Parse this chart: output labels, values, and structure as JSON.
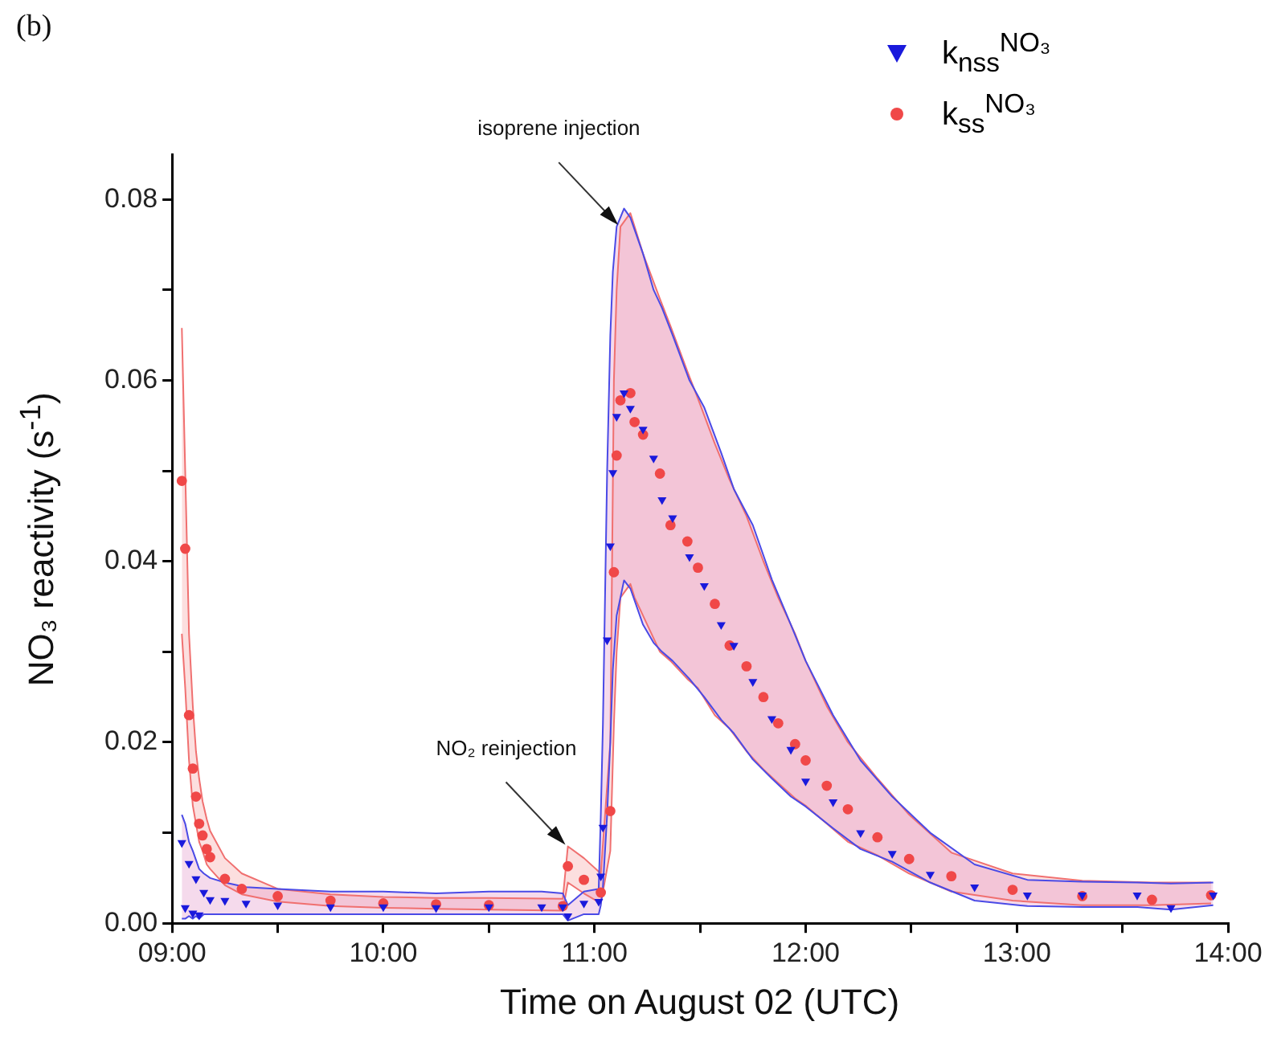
{
  "chart_data": {
    "type": "scatter",
    "xlabel": "Time on August 02 (UTC)",
    "ylabel": "NO₃ reactivity (s$^{-1}$)",
    "xlim": [
      9,
      14
    ],
    "ylim": [
      0,
      0.085
    ],
    "xticks": [
      {
        "value": 9,
        "label": "09:00"
      },
      {
        "value": 9.5,
        "label": null
      },
      {
        "value": 10,
        "label": "10:00"
      },
      {
        "value": 10.5,
        "label": null
      },
      {
        "value": 11,
        "label": "11:00"
      },
      {
        "value": 11.5,
        "label": null
      },
      {
        "value": 12,
        "label": "12:00"
      },
      {
        "value": 12.5,
        "label": null
      },
      {
        "value": 13,
        "label": "13:00"
      },
      {
        "value": 13.5,
        "label": null
      },
      {
        "value": 14,
        "label": "14:00"
      }
    ],
    "yticks": [
      {
        "value": 0,
        "label": "0.00"
      },
      {
        "value": 0.01,
        "label": null
      },
      {
        "value": 0.02,
        "label": "0.02"
      },
      {
        "value": 0.03,
        "label": null
      },
      {
        "value": 0.04,
        "label": "0.04"
      },
      {
        "value": 0.05,
        "label": null
      },
      {
        "value": 0.06,
        "label": "0.06"
      },
      {
        "value": 0.07,
        "label": null
      },
      {
        "value": 0.08,
        "label": "0.08"
      }
    ],
    "grid": false,
    "legend": "top right",
    "annotations": [
      "(b)",
      {
        "text": "isoprene injection",
        "x": 11.12,
        "y": 0.077
      },
      {
        "text": "NO₂ reinjection",
        "x": 10.87,
        "y": 0.0085
      }
    ],
    "series": [
      {
        "name": "k$_{nss}$$^{NO₃}$",
        "color": "#1a1adc",
        "marker": "triangle",
        "x": [
          9.046,
          9.062,
          9.08,
          9.098,
          9.113,
          9.128,
          9.15,
          9.18,
          9.25,
          9.35,
          9.5,
          9.75,
          10.0,
          10.25,
          10.5,
          10.75,
          10.85,
          10.874,
          10.95,
          11.02,
          11.03,
          11.04,
          11.06,
          11.075,
          11.087,
          11.105,
          11.14,
          11.17,
          11.23,
          11.28,
          11.32,
          11.37,
          11.45,
          11.52,
          11.6,
          11.66,
          11.75,
          11.84,
          11.93,
          12.0,
          12.13,
          12.26,
          12.41,
          12.59,
          12.8,
          13.05,
          13.31,
          13.57,
          13.73,
          13.93
        ],
        "values": [
          0.0089,
          0.0017,
          0.0066,
          0.0011,
          0.0049,
          0.0009,
          0.0034,
          0.0026,
          0.0025,
          0.0022,
          0.002,
          0.0018,
          0.0018,
          0.0017,
          0.0018,
          0.0018,
          0.0018,
          0.0008,
          0.0022,
          0.0024,
          0.0052,
          0.0106,
          0.0313,
          0.0417,
          0.0498,
          0.056,
          0.0586,
          0.0569,
          0.0546,
          0.0514,
          0.0468,
          0.0448,
          0.0405,
          0.0373,
          0.033,
          0.0307,
          0.0267,
          0.0226,
          0.0192,
          0.0157,
          0.0134,
          0.01,
          0.0077,
          0.0054,
          0.004,
          0.0031,
          0.0031,
          0.0031,
          0.0017,
          0.0031
        ],
        "lower": [
          0.0005,
          0.0005,
          0.0008,
          0.0005,
          0.0008,
          0.0005,
          0.001,
          0.001,
          0.001,
          0.001,
          0.001,
          0.001,
          0.001,
          0.001,
          0.001,
          0.001,
          0.001,
          0.0003,
          0.001,
          0.001,
          0.002,
          0.004,
          0.012,
          0.02,
          0.028,
          0.034,
          0.0379,
          0.037,
          0.033,
          0.031,
          0.03,
          0.029,
          0.027,
          0.025,
          0.0225,
          0.021,
          0.0181,
          0.016,
          0.014,
          0.0129,
          0.0105,
          0.0082,
          0.0068,
          0.0045,
          0.0025,
          0.0019,
          0.0018,
          0.0018,
          0.0015,
          0.002
        ],
        "upper": [
          0.012,
          0.011,
          0.009,
          0.008,
          0.007,
          0.006,
          0.0055,
          0.005,
          0.0045,
          0.004,
          0.0038,
          0.0035,
          0.0035,
          0.0033,
          0.0035,
          0.0035,
          0.0033,
          0.002,
          0.0035,
          0.0038,
          0.012,
          0.022,
          0.05,
          0.065,
          0.072,
          0.077,
          0.079,
          0.078,
          0.074,
          0.07,
          0.068,
          0.065,
          0.06,
          0.057,
          0.052,
          0.048,
          0.044,
          0.038,
          0.033,
          0.029,
          0.023,
          0.018,
          0.014,
          0.01,
          0.0065,
          0.0048,
          0.0046,
          0.0045,
          0.0044,
          0.0045
        ]
      },
      {
        "name": "k$_{ss}$$^{NO₃}$",
        "color": "#f04848",
        "marker": "circle",
        "x": [
          9.046,
          9.062,
          9.08,
          9.098,
          9.113,
          9.128,
          9.144,
          9.164,
          9.18,
          9.25,
          9.33,
          9.5,
          9.75,
          10.0,
          10.25,
          10.5,
          10.85,
          10.874,
          10.95,
          11.03,
          11.075,
          11.092,
          11.105,
          11.123,
          11.17,
          11.19,
          11.23,
          11.31,
          11.36,
          11.44,
          11.49,
          11.57,
          11.64,
          11.72,
          11.8,
          11.87,
          11.95,
          12.0,
          12.1,
          12.2,
          12.34,
          12.49,
          12.69,
          12.98,
          13.31,
          13.64,
          13.92
        ],
        "values": [
          0.0489,
          0.0414,
          0.023,
          0.0171,
          0.014,
          0.011,
          0.0097,
          0.0082,
          0.0073,
          0.0049,
          0.0038,
          0.003,
          0.0025,
          0.0022,
          0.0021,
          0.002,
          0.0019,
          0.0063,
          0.0048,
          0.0034,
          0.0124,
          0.0388,
          0.0517,
          0.0578,
          0.0586,
          0.0554,
          0.054,
          0.0497,
          0.044,
          0.0422,
          0.0393,
          0.0353,
          0.0307,
          0.0284,
          0.025,
          0.0221,
          0.0198,
          0.018,
          0.0152,
          0.0126,
          0.0095,
          0.0071,
          0.0052,
          0.0037,
          0.003,
          0.0026,
          0.0031
        ],
        "lower": [
          0.032,
          0.026,
          0.018,
          0.013,
          0.011,
          0.009,
          0.008,
          0.0065,
          0.006,
          0.0042,
          0.0032,
          0.0024,
          0.0019,
          0.0017,
          0.0016,
          0.0015,
          0.0014,
          0.0045,
          0.0033,
          0.0022,
          0.008,
          0.022,
          0.03,
          0.036,
          0.0375,
          0.036,
          0.034,
          0.03,
          0.029,
          0.027,
          0.026,
          0.023,
          0.0215,
          0.019,
          0.017,
          0.0155,
          0.0138,
          0.013,
          0.011,
          0.009,
          0.0075,
          0.0055,
          0.0035,
          0.0025,
          0.002,
          0.002,
          0.0022
        ],
        "upper": [
          0.0658,
          0.05,
          0.032,
          0.024,
          0.019,
          0.016,
          0.0135,
          0.0115,
          0.0102,
          0.0072,
          0.0055,
          0.0038,
          0.0032,
          0.0029,
          0.0028,
          0.0028,
          0.0027,
          0.0085,
          0.0072,
          0.0055,
          0.02,
          0.06,
          0.07,
          0.077,
          0.0785,
          0.077,
          0.074,
          0.069,
          0.066,
          0.061,
          0.058,
          0.053,
          0.049,
          0.045,
          0.04,
          0.036,
          0.032,
          0.029,
          0.024,
          0.02,
          0.016,
          0.012,
          0.0078,
          0.0055,
          0.0047,
          0.0045,
          0.0045
        ]
      },
      {
        "type": "line",
        "color": "#4a4ae6",
        "x": [
          9.046,
          9.062,
          9.08,
          9.098,
          9.113,
          9.128,
          9.15,
          9.18,
          9.25,
          9.35,
          9.5,
          9.75,
          10.0,
          10.25,
          10.5,
          10.75,
          10.85,
          10.874,
          10.95,
          11.02,
          11.03,
          11.04,
          11.06,
          11.075,
          11.087,
          11.105,
          11.14,
          11.17,
          11.23,
          11.28,
          11.32,
          11.37,
          11.45,
          11.52,
          11.6,
          11.66,
          11.75,
          11.84,
          11.93,
          12.0,
          12.13,
          12.26,
          12.41,
          12.59,
          12.8,
          13.05,
          13.31,
          13.57,
          13.73,
          13.93
        ],
        "values": [
          0.0005,
          0.0005,
          0.0008,
          0.0005,
          0.0008,
          0.0005,
          0.001,
          0.001,
          0.001,
          0.001,
          0.001,
          0.001,
          0.001,
          0.001,
          0.001,
          0.001,
          0.001,
          0.0003,
          0.001,
          0.001,
          0.002,
          0.004,
          0.012,
          0.02,
          0.028,
          0.034,
          0.0379,
          0.037,
          0.033,
          0.031,
          0.03,
          0.029,
          0.027,
          0.025,
          0.0225,
          0.021,
          0.0181,
          0.016,
          0.014,
          0.0129,
          0.0105,
          0.0082,
          0.0068,
          0.0045,
          0.0025,
          0.0019,
          0.0018,
          0.0018,
          0.0015,
          0.002
        ]
      },
      {
        "type": "line",
        "color": "#4a4ae6",
        "x": [
          9.046,
          9.062,
          9.08,
          9.098,
          9.113,
          9.128,
          9.15,
          9.18,
          9.25,
          9.35,
          9.5,
          9.75,
          10.0,
          10.25,
          10.5,
          10.75,
          10.85,
          10.874,
          10.95,
          11.02,
          11.03,
          11.04,
          11.06,
          11.075,
          11.087,
          11.105,
          11.14,
          11.17,
          11.23,
          11.28,
          11.32,
          11.37,
          11.45,
          11.52,
          11.6,
          11.66,
          11.75,
          11.84,
          11.93,
          12.0,
          12.13,
          12.26,
          12.41,
          12.59,
          12.8,
          13.05,
          13.31,
          13.57,
          13.73,
          13.93
        ],
        "values": [
          0.012,
          0.011,
          0.009,
          0.008,
          0.007,
          0.006,
          0.0055,
          0.005,
          0.0045,
          0.004,
          0.0038,
          0.0035,
          0.0035,
          0.0033,
          0.0035,
          0.0035,
          0.0033,
          0.002,
          0.0035,
          0.0038,
          0.012,
          0.022,
          0.05,
          0.065,
          0.072,
          0.077,
          0.079,
          0.078,
          0.074,
          0.07,
          0.068,
          0.065,
          0.06,
          0.057,
          0.052,
          0.048,
          0.044,
          0.038,
          0.033,
          0.029,
          0.023,
          0.018,
          0.014,
          0.01,
          0.0065,
          0.0048,
          0.0046,
          0.0045,
          0.0044,
          0.0045
        ]
      },
      {
        "type": "line",
        "color": "#f07070",
        "x": [
          9.046,
          9.062,
          9.08,
          9.098,
          9.113,
          9.128,
          9.144,
          9.164,
          9.18,
          9.25,
          9.33,
          9.5,
          9.75,
          10.0,
          10.25,
          10.5,
          10.85,
          10.874,
          10.95,
          11.03,
          11.075,
          11.092,
          11.105,
          11.123,
          11.17,
          11.19,
          11.23,
          11.31,
          11.36,
          11.44,
          11.49,
          11.57,
          11.64,
          11.72,
          11.8,
          11.87,
          11.95,
          12.0,
          12.1,
          12.2,
          12.34,
          12.49,
          12.69,
          12.98,
          13.31,
          13.64,
          13.92
        ],
        "values": [
          0.032,
          0.026,
          0.018,
          0.013,
          0.011,
          0.009,
          0.008,
          0.0065,
          0.006,
          0.0042,
          0.0032,
          0.0024,
          0.0019,
          0.0017,
          0.0016,
          0.0015,
          0.0014,
          0.0045,
          0.0033,
          0.0022,
          0.008,
          0.022,
          0.03,
          0.036,
          0.0375,
          0.036,
          0.034,
          0.03,
          0.029,
          0.027,
          0.026,
          0.023,
          0.0215,
          0.019,
          0.017,
          0.0155,
          0.0138,
          0.013,
          0.011,
          0.009,
          0.0075,
          0.0055,
          0.0035,
          0.0025,
          0.002,
          0.002,
          0.0022
        ]
      },
      {
        "type": "line",
        "color": "#f07070",
        "x": [
          9.046,
          9.062,
          9.08,
          9.098,
          9.113,
          9.128,
          9.144,
          9.164,
          9.18,
          9.25,
          9.33,
          9.5,
          9.75,
          10.0,
          10.25,
          10.5,
          10.85,
          10.874,
          10.95,
          11.03,
          11.075,
          11.092,
          11.105,
          11.123,
          11.17,
          11.19,
          11.23,
          11.31,
          11.36,
          11.44,
          11.49,
          11.57,
          11.64,
          11.72,
          11.8,
          11.87,
          11.95,
          12.0,
          12.1,
          12.2,
          12.34,
          12.49,
          12.69,
          12.98,
          13.31,
          13.64,
          13.92
        ],
        "values": [
          0.0658,
          0.05,
          0.032,
          0.024,
          0.019,
          0.016,
          0.0135,
          0.0115,
          0.0102,
          0.0072,
          0.0055,
          0.0038,
          0.0032,
          0.0029,
          0.0028,
          0.0028,
          0.0027,
          0.0085,
          0.0072,
          0.0055,
          0.02,
          0.06,
          0.07,
          0.077,
          0.0785,
          0.077,
          0.074,
          0.069,
          0.066,
          0.061,
          0.058,
          0.053,
          0.049,
          0.045,
          0.04,
          0.036,
          0.032,
          0.029,
          0.024,
          0.02,
          0.016,
          0.012,
          0.0078,
          0.0055,
          0.0047,
          0.0045,
          0.0045
        ]
      }
    ]
  }
}
